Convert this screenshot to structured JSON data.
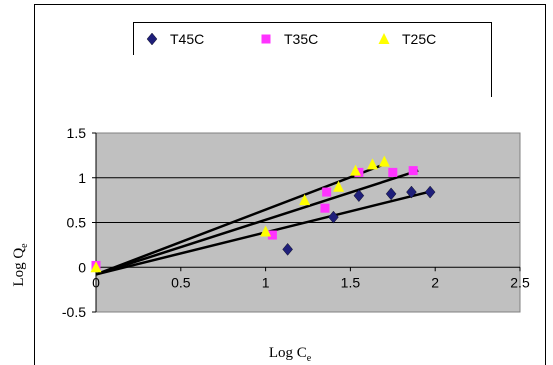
{
  "chart_data": {
    "type": "scatter",
    "title": "",
    "xlabel": {
      "main": "Log C",
      "sub": "e"
    },
    "ylabel": {
      "main": "Log Q",
      "sub": "e"
    },
    "xlim": [
      0,
      2.5
    ],
    "ylim": [
      -0.5,
      1.5
    ],
    "x_ticks": [
      0,
      0.5,
      1,
      1.5,
      2,
      2.5
    ],
    "x_tick_labels": [
      "0",
      "0.5",
      "1",
      "1.5",
      "2",
      "2.5"
    ],
    "y_ticks": [
      -0.5,
      0,
      0.5,
      1,
      1.5
    ],
    "y_tick_labels": [
      "-0.5",
      "0",
      "0.5",
      "1",
      "1.5"
    ],
    "gridlines_y": [
      0.5,
      1,
      1.5
    ],
    "grid": true,
    "plot_background": "#c0c0c0",
    "legend_position": "top",
    "series": [
      {
        "name": "T45C",
        "marker": "diamond",
        "color": "#1f1f7a",
        "x": [
          1.13,
          1.4,
          1.55,
          1.74,
          1.86,
          1.97
        ],
        "y": [
          0.2,
          0.56,
          0.8,
          0.82,
          0.84,
          0.84
        ],
        "trend": {
          "x0": 0,
          "y0": -0.08,
          "x1": 1.98,
          "y1": 0.85
        }
      },
      {
        "name": "T35C",
        "marker": "square",
        "color": "#ff33ff",
        "x": [
          0.0,
          1.04,
          1.35,
          1.36,
          1.55,
          1.75,
          1.87
        ],
        "y": [
          0.02,
          0.36,
          0.66,
          0.84,
          1.06,
          1.06,
          1.08
        ],
        "trend": {
          "x0": 0,
          "y0": -0.08,
          "x1": 1.9,
          "y1": 1.08
        }
      },
      {
        "name": "T25C",
        "marker": "triangle",
        "color": "#ffff00",
        "x": [
          0.0,
          1.0,
          1.23,
          1.43,
          1.53,
          1.63,
          1.7
        ],
        "y": [
          0.0,
          0.4,
          0.75,
          0.9,
          1.08,
          1.15,
          1.18
        ],
        "trend": {
          "x0": 0,
          "y0": -0.08,
          "x1": 1.7,
          "y1": 1.15
        }
      }
    ]
  }
}
